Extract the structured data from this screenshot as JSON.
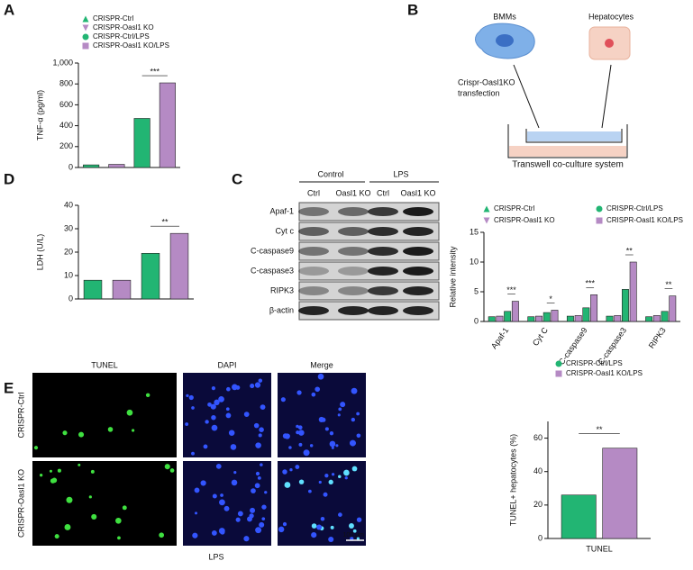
{
  "panels": [
    "A",
    "B",
    "C",
    "D",
    "E"
  ],
  "diagram": {
    "cells": [
      "BMMs",
      "Hepatocytes"
    ],
    "step": [
      "Crispr-Oasl1KO",
      "transfection"
    ],
    "system": "Transwell co-culture system"
  },
  "blot": {
    "groups": [
      "Control",
      "LPS"
    ],
    "lanes": [
      "Ctrl",
      "Oasl1 KO",
      "Ctrl",
      "Oasl1 KO"
    ],
    "rows": [
      "Apaf-1",
      "Cyt c",
      "C-caspase9",
      "C-caspase3",
      "RIPK3",
      "β-actin"
    ]
  },
  "micro": {
    "columns": [
      "TUNEL",
      "DAPI",
      "Merge"
    ],
    "rows": [
      "CRISPR-Ctrl",
      "CRISPR-Oasl1 KO"
    ],
    "scale": "100 μm",
    "condition": "LPS"
  },
  "chart_data": [
    {
      "type": "bar",
      "y_label": "TNF-α (pg/ml)",
      "categories": [
        null,
        null,
        null,
        null
      ],
      "series": [
        {
          "name": "CRISPR-Ctrl",
          "color": "#22b573",
          "marker": "triangle-up",
          "values": [
            25,
            null,
            null,
            null
          ]
        },
        {
          "name": "CRISPR-Oasl1 KO",
          "color": "#b58ac4",
          "marker": "triangle-down",
          "values": [
            null,
            30,
            null,
            null
          ]
        },
        {
          "name": "CRISPR-Ctrl/LPS",
          "color": "#22b573",
          "marker": "circle",
          "values": [
            null,
            null,
            470,
            null
          ]
        },
        {
          "name": "CRISPR-Oasl1 KO/LPS",
          "color": "#b58ac4",
          "marker": "square",
          "values": [
            null,
            null,
            null,
            810
          ]
        }
      ],
      "ylim": [
        0,
        1000
      ],
      "yticks": [
        0,
        200,
        400,
        600,
        800,
        {
          "value": 1000,
          "label": "1,000"
        }
      ],
      "annotations": [
        "***"
      ]
    },
    {
      "type": "bar",
      "y_label": "LDH (U/L)",
      "categories": [
        null,
        null,
        null,
        null
      ],
      "series": [
        {
          "color": "#22b573",
          "values": [
            8,
            null,
            null,
            null
          ]
        },
        {
          "color": "#b58ac4",
          "values": [
            null,
            8,
            null,
            null
          ]
        },
        {
          "color": "#22b573",
          "values": [
            null,
            null,
            19.5,
            null
          ]
        },
        {
          "color": "#b58ac4",
          "values": [
            null,
            null,
            null,
            28
          ]
        }
      ],
      "ylim": [
        0,
        40
      ],
      "yticks": [
        0,
        10,
        20,
        30,
        40
      ],
      "annotations": [
        "**"
      ]
    },
    {
      "type": "bar",
      "y_label": "Relative intensity",
      "categories": [
        "Apaf-1",
        "Cyt C",
        "C-caspase9",
        "C-caspase3",
        "RIPK3"
      ],
      "series": [
        {
          "name": "CRISPR-Ctrl",
          "color": "#22b573",
          "marker": "triangle-up",
          "values": [
            0.8,
            0.8,
            0.9,
            0.9,
            0.8
          ]
        },
        {
          "name": "CRISPR-Oasl1 KO",
          "color": "#b58ac4",
          "marker": "triangle-down",
          "values": [
            0.9,
            0.9,
            1,
            1,
            1
          ]
        },
        {
          "name": "CRISPR-Ctrl/LPS",
          "color": "#22b573",
          "marker": "circle",
          "values": [
            1.7,
            1.5,
            2.3,
            5.4,
            1.7
          ]
        },
        {
          "name": "CRISPR-Oasl1 KO/LPS",
          "color": "#b58ac4",
          "marker": "square",
          "values": [
            3.4,
            1.9,
            4.5,
            10,
            4.3
          ]
        }
      ],
      "ylim": [
        0,
        15
      ],
      "yticks": [
        0,
        5,
        10,
        15
      ],
      "annotations": [
        "***",
        "*",
        "***",
        "**",
        "**"
      ]
    },
    {
      "type": "bar",
      "y_label": "TUNEL+ hepatocytes (%)",
      "categories": [
        "TUNEL"
      ],
      "series": [
        {
          "name": "CRISPR-Ctrl/LPS",
          "color": "#22b573",
          "marker": "circle",
          "values": [
            26
          ]
        },
        {
          "name": "CRISPR-Oasl1 KO/LPS",
          "color": "#b58ac4",
          "marker": "square",
          "values": [
            54
          ]
        }
      ],
      "ylim": [
        0,
        70
      ],
      "yticks": [
        0,
        20,
        40,
        60
      ],
      "annotations": [
        "**"
      ]
    }
  ]
}
